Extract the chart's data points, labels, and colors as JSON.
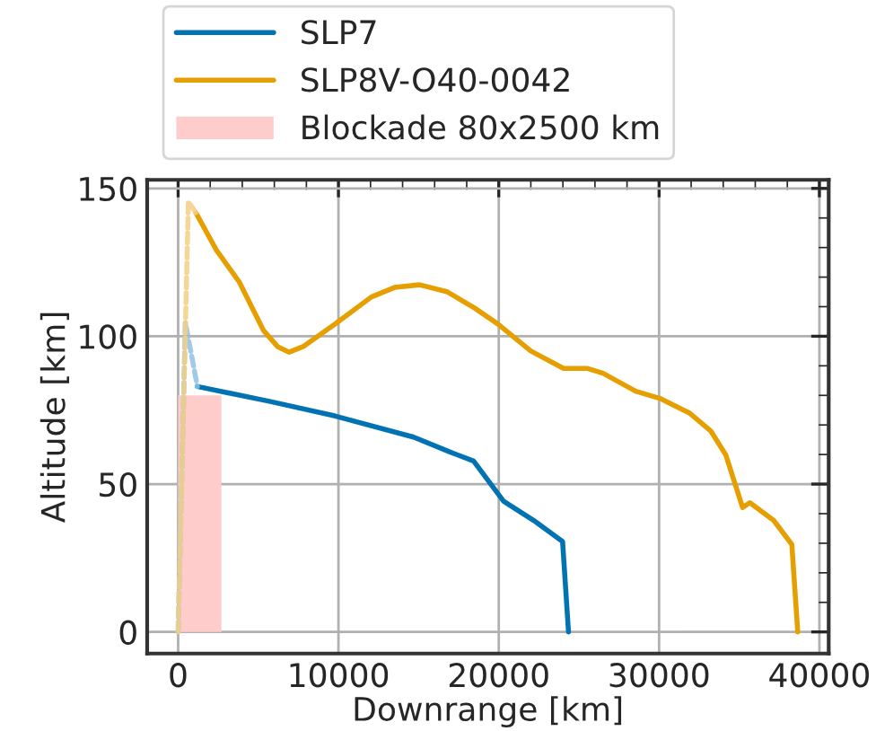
{
  "chart_data": {
    "type": "line",
    "xlabel": "Downrange [km]",
    "ylabel": "Altitude [km]",
    "series": [
      {
        "name": "SLP7",
        "color": "#0173b2",
        "x": [
          1200,
          5690,
          9810,
          14690,
          16930,
          18430,
          20300,
          22180,
          23980,
          24350
        ],
        "values": [
          83,
          78,
          73,
          65.9,
          60.9,
          57.8,
          44.2,
          37.7,
          30.6,
          0
        ]
      },
      {
        "name": "SLP8V-O40-0042",
        "color": "#e69f00",
        "x": [
          1120,
          2400,
          3820,
          5320,
          6200,
          6930,
          7800,
          9810,
          12060,
          13500,
          15060,
          16800,
          18500,
          19930,
          22000,
          24040,
          25550,
          26500,
          28540,
          30040,
          31910,
          33220,
          34160,
          35210,
          35660,
          37150,
          38280,
          38650
        ],
        "values": [
          141.6,
          129,
          118.3,
          102,
          96.5,
          94.6,
          96.5,
          104.2,
          113.3,
          116.5,
          117.4,
          115,
          109.5,
          104.2,
          95,
          89.1,
          89.1,
          87.5,
          81.4,
          79,
          74,
          68,
          59.9,
          42.1,
          43.7,
          37.7,
          29.6,
          0
        ]
      },
      {
        "type": "area",
        "name": "Blockade 80x2500 km",
        "color": "#ffcccc",
        "x": [
          0,
          2700
        ],
        "values": [
          80,
          80
        ]
      },
      {
        "color": "#8fc1e3",
        "line_style": "dashed",
        "x": [
          0,
          450,
          1200
        ],
        "values": [
          0,
          104.7,
          83
        ]
      },
      {
        "color": "#f5cf85",
        "line_style": "dashed",
        "x": [
          0,
          640,
          1120
        ],
        "values": [
          0,
          145.6,
          141.6
        ]
      }
    ],
    "xlim": [
      -1932,
      40580
    ],
    "ylim": [
      -7.3,
      152.9
    ],
    "xticks": [
      0,
      10000,
      20000,
      30000,
      40000
    ],
    "yticks": [
      0,
      50,
      100,
      150
    ],
    "grid": true,
    "legend": "top"
  }
}
